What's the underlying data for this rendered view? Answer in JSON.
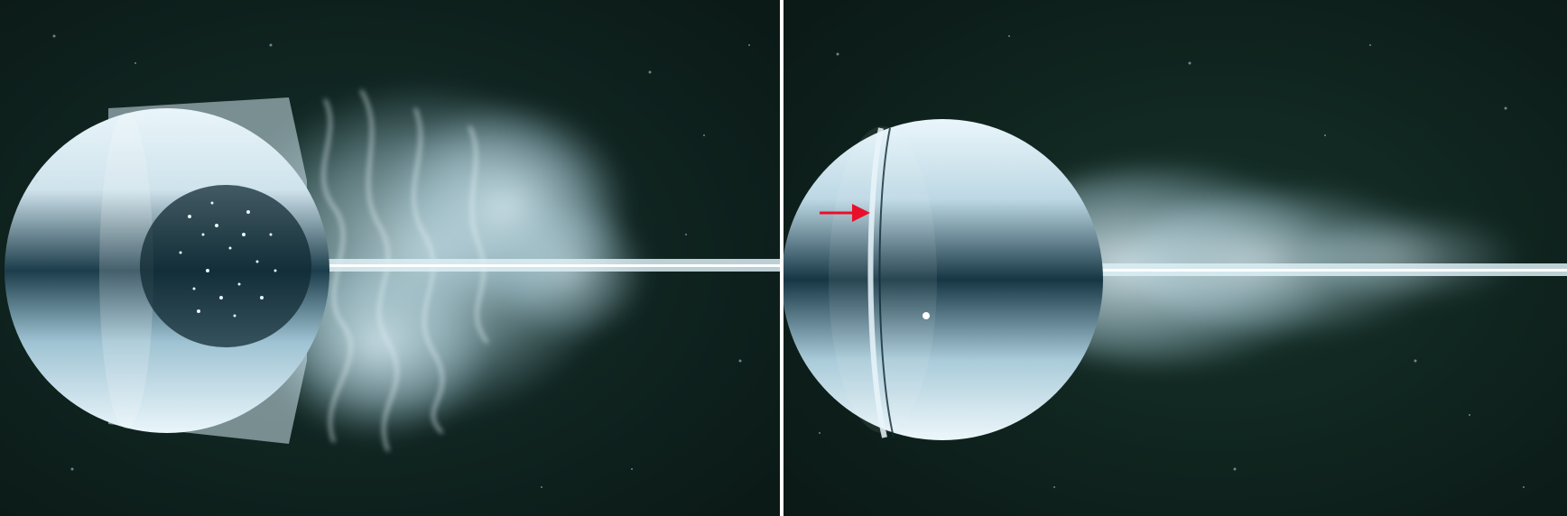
{
  "figure": {
    "panels": [
      {
        "id": "left",
        "subject": "sphere-flow-turbulent-wake"
      },
      {
        "id": "right",
        "subject": "sphere-flow-with-trip-wire"
      }
    ],
    "colors": {
      "background": "#0d1f1c",
      "sphere_highlight": "#eef7fb",
      "sphere_shadow": "#1a3a48",
      "smoke": "#cfe6ef",
      "arrow": "#e8102a",
      "divider": "#ffffff"
    },
    "annotations": [
      {
        "type": "arrow",
        "color": "#e8102a",
        "panel": "right",
        "points_to": "trip-wire-ring"
      }
    ]
  }
}
